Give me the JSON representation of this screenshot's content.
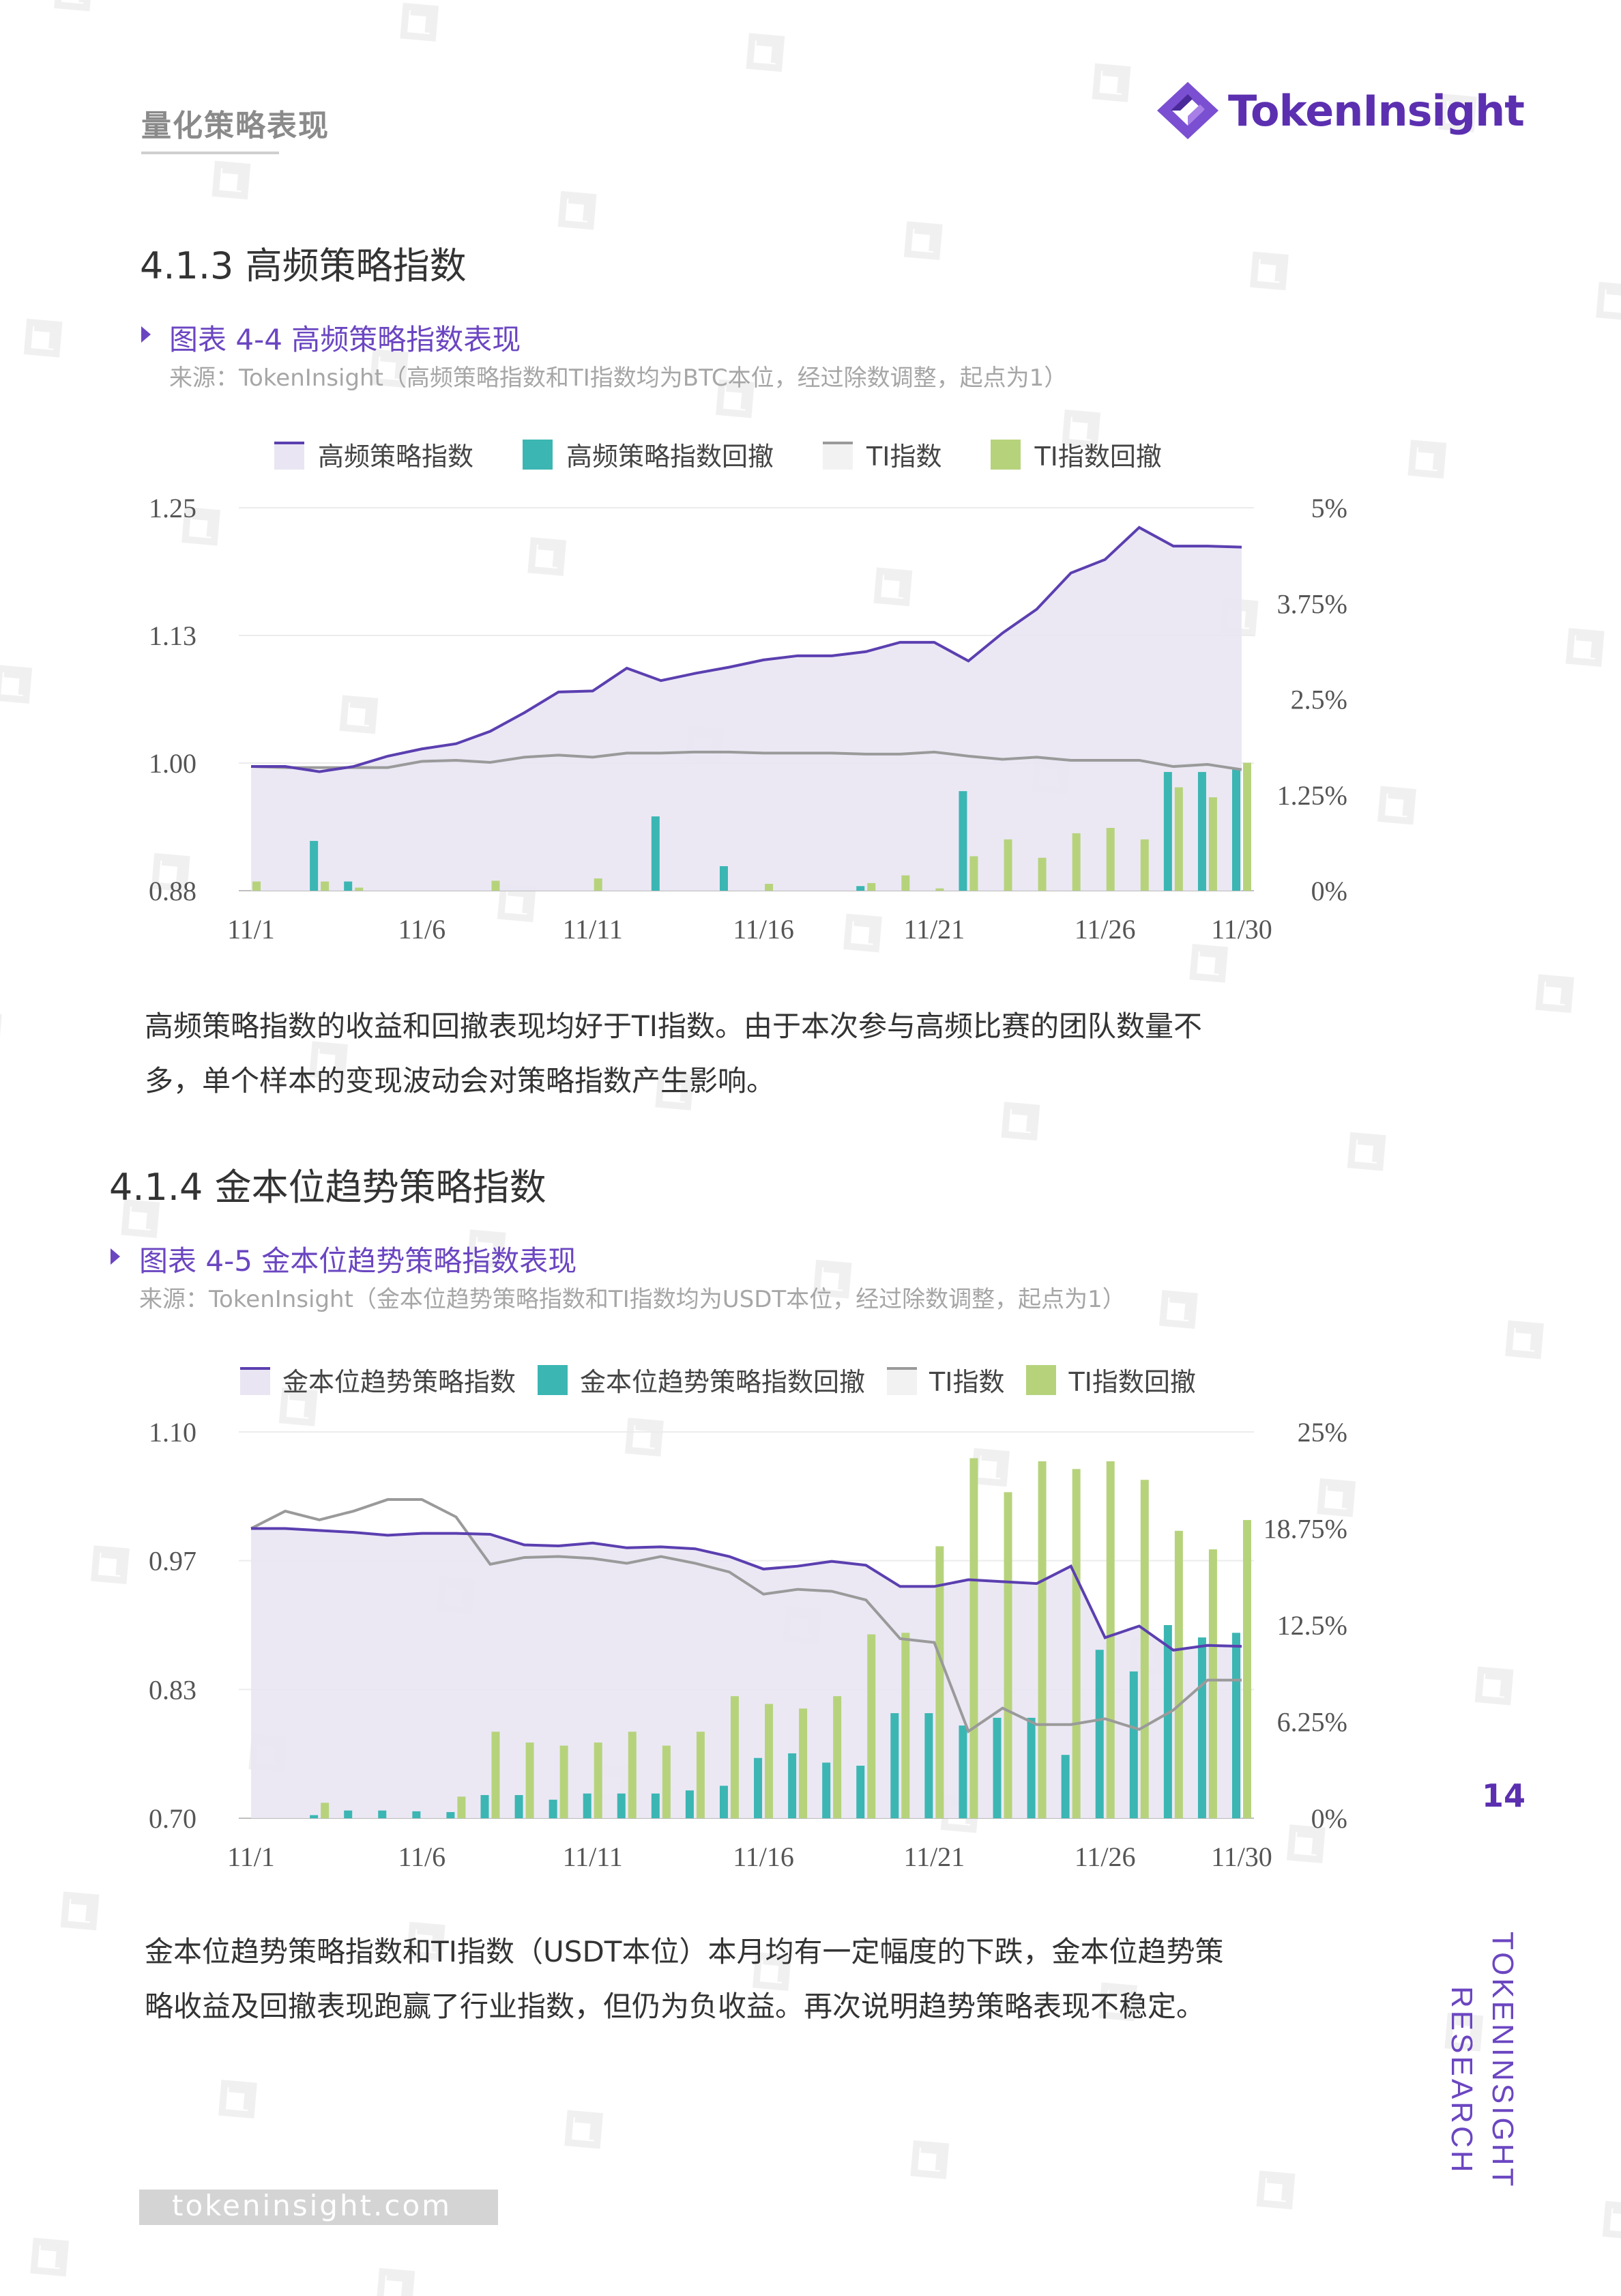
{
  "header": {
    "section_label": "量化策略表现",
    "logo_text": "TokenInsight"
  },
  "section_413": {
    "heading": "4.1.3 高频策略指数",
    "figure_title": "图表 4-4 高频策略指数表现",
    "figure_source": "来源：TokenInsight（高频策略指数和TI指数均为BTC本位，经过除数调整，起点为1）",
    "paragraph": [
      "高频策略指数的收益和回撤表现均好于TI指数。由于本次参与高频比赛的团队数量不",
      "多，单个样本的变现波动会对策略指数产生影响。"
    ]
  },
  "section_414": {
    "heading": "4.1.4 金本位趋势策略指数",
    "figure_title": "图表 4-5 金本位趋势策略指数表现",
    "figure_source": "来源：TokenInsight（金本位趋势策略指数和TI指数均为USDT本位，经过除数调整，起点为1）",
    "paragraph": [
      "金本位趋势策略指数和TI指数（USDT本位）本月均有一定幅度的下跌，金本位趋势策",
      "略收益及回撤表现跑赢了行业指数，但仍为负收益。再次说明趋势策略表现不稳定。"
    ]
  },
  "page_number": "14",
  "vertical_brand": [
    "TOKENINSIGHT",
    "RESEARCH"
  ],
  "footer_url": "tokeninsight.com",
  "colors": {
    "brand": "#5b2fb0",
    "strategy_line": "#5b3fb0",
    "strategy_fill": "#e9e5f3",
    "strategy_drawdown": "#3bb6b3",
    "ti_line": "#9a9a9a",
    "ti_drawdown": "#b6d37c"
  },
  "chart_data": [
    {
      "type": "line",
      "legend": [
        "高频策略指数",
        "高频策略指数回撤",
        "TI指数",
        "TI指数回撤"
      ],
      "legend_placement": "top",
      "x_ticks": [
        "11/1",
        "11/6",
        "11/11",
        "11/16",
        "11/21",
        "11/26",
        "11/30"
      ],
      "x": [
        "11/1",
        "11/2",
        "11/3",
        "11/4",
        "11/5",
        "11/6",
        "11/7",
        "11/8",
        "11/9",
        "11/10",
        "11/11",
        "11/12",
        "11/13",
        "11/14",
        "11/15",
        "11/16",
        "11/17",
        "11/18",
        "11/19",
        "11/20",
        "11/21",
        "11/22",
        "11/23",
        "11/24",
        "11/25",
        "11/26",
        "11/27",
        "11/28",
        "11/29",
        "11/30"
      ],
      "ylim_left": [
        0.88,
        1.25
      ],
      "yticks_left": [
        "1.25",
        "1.13",
        "1.00",
        "0.88"
      ],
      "ylim_right": [
        0,
        5
      ],
      "yticks_right": [
        "5%",
        "3.75%",
        "2.5%",
        "1.25%",
        "0%"
      ],
      "grid": true,
      "series": [
        {
          "name": "高频策略指数",
          "kind": "line-area",
          "axis": "left",
          "values": [
            1.0,
            1.0,
            0.995,
            1.0,
            1.01,
            1.017,
            1.022,
            1.034,
            1.052,
            1.072,
            1.073,
            1.095,
            1.083,
            1.09,
            1.096,
            1.103,
            1.107,
            1.107,
            1.111,
            1.12,
            1.12,
            1.102,
            1.129,
            1.152,
            1.187,
            1.2,
            1.231,
            1.213,
            1.213,
            1.212
          ]
        },
        {
          "name": "高频策略指数回撤",
          "kind": "bar",
          "axis": "right",
          "values": [
            0,
            0,
            0.65,
            0.12,
            0,
            0,
            0,
            0,
            0,
            0,
            0,
            0,
            0.97,
            0,
            0.32,
            0,
            0,
            0,
            0.06,
            0,
            0,
            1.3,
            0,
            0,
            0,
            0,
            0,
            1.55,
            1.55,
            1.6
          ]
        },
        {
          "name": "TI指数",
          "kind": "line",
          "axis": "left",
          "values": [
            1.0,
            0.999,
            0.999,
            0.999,
            0.999,
            1.005,
            1.006,
            1.004,
            1.009,
            1.011,
            1.009,
            1.013,
            1.013,
            1.014,
            1.014,
            1.013,
            1.013,
            1.013,
            1.012,
            1.012,
            1.014,
            1.01,
            1.007,
            1.009,
            1.006,
            1.006,
            1.006,
            1.0,
            1.002,
            0.997
          ]
        },
        {
          "name": "TI指数回撤",
          "kind": "bar",
          "axis": "right",
          "values": [
            0.12,
            0,
            0.12,
            0.04,
            0,
            0,
            0,
            0.13,
            0,
            0,
            0.16,
            0,
            0,
            0,
            0,
            0.09,
            0,
            0,
            0.1,
            0.2,
            0.03,
            0.45,
            0.67,
            0.43,
            0.75,
            0.82,
            0.67,
            1.35,
            1.22,
            1.67
          ]
        }
      ]
    },
    {
      "type": "line",
      "legend": [
        "金本位趋势策略指数",
        "金本位趋势策略指数回撤",
        "TI指数",
        "TI指数回撤"
      ],
      "legend_placement": "top",
      "x_ticks": [
        "11/1",
        "11/6",
        "11/11",
        "11/16",
        "11/21",
        "11/26",
        "11/30"
      ],
      "x": [
        "11/1",
        "11/2",
        "11/3",
        "11/4",
        "11/5",
        "11/6",
        "11/7",
        "11/8",
        "11/9",
        "11/10",
        "11/11",
        "11/12",
        "11/13",
        "11/14",
        "11/15",
        "11/16",
        "11/17",
        "11/18",
        "11/19",
        "11/20",
        "11/21",
        "11/22",
        "11/23",
        "11/24",
        "11/25",
        "11/26",
        "11/27",
        "11/28",
        "11/29",
        "11/30"
      ],
      "ylim_left": [
        0.7,
        1.1
      ],
      "yticks_left": [
        "1.10",
        "0.97",
        "0.83",
        "0.70"
      ],
      "ylim_right": [
        0,
        25
      ],
      "yticks_right": [
        "25%",
        "18.75%",
        "12.5%",
        "6.25%",
        "0%"
      ],
      "grid": true,
      "series": [
        {
          "name": "金本位趋势策略指数",
          "kind": "line-area",
          "axis": "left",
          "values": [
            1.0,
            1.0,
            0.998,
            0.996,
            0.993,
            0.995,
            0.995,
            0.994,
            0.983,
            0.982,
            0.985,
            0.98,
            0.981,
            0.979,
            0.971,
            0.958,
            0.961,
            0.966,
            0.962,
            0.94,
            0.94,
            0.947,
            0.945,
            0.943,
            0.961,
            0.887,
            0.899,
            0.874,
            0.879,
            0.878
          ]
        },
        {
          "name": "金本位趋势策略指数回撤",
          "kind": "bar",
          "axis": "right",
          "values": [
            0,
            0,
            0.2,
            0.5,
            0.5,
            0.45,
            0.4,
            1.5,
            1.5,
            1.2,
            1.6,
            1.6,
            1.6,
            1.8,
            2.1,
            3.9,
            4.2,
            3.6,
            3.4,
            6.8,
            6.8,
            6.0,
            6.5,
            6.5,
            4.1,
            10.9,
            9.5,
            12.5,
            11.7,
            12.0
          ]
        },
        {
          "name": "TI指数",
          "kind": "line",
          "axis": "left",
          "values": [
            1.0,
            1.018,
            1.009,
            1.018,
            1.03,
            1.03,
            1.012,
            0.963,
            0.97,
            0.971,
            0.969,
            0.964,
            0.971,
            0.964,
            0.955,
            0.932,
            0.937,
            0.935,
            0.926,
            0.886,
            0.882,
            0.79,
            0.814,
            0.797,
            0.797,
            0.803,
            0.792,
            0.812,
            0.843,
            0.843
          ]
        },
        {
          "name": "TI指数回撤",
          "kind": "bar",
          "axis": "right",
          "values": [
            0,
            0,
            1.0,
            0,
            0,
            0,
            1.4,
            5.6,
            4.9,
            4.7,
            4.9,
            5.6,
            4.7,
            5.6,
            7.9,
            7.4,
            7.1,
            7.9,
            11.9,
            12.0,
            17.6,
            23.3,
            21.1,
            23.1,
            22.6,
            23.1,
            21.9,
            18.6,
            17.4,
            19.3
          ]
        }
      ]
    }
  ]
}
